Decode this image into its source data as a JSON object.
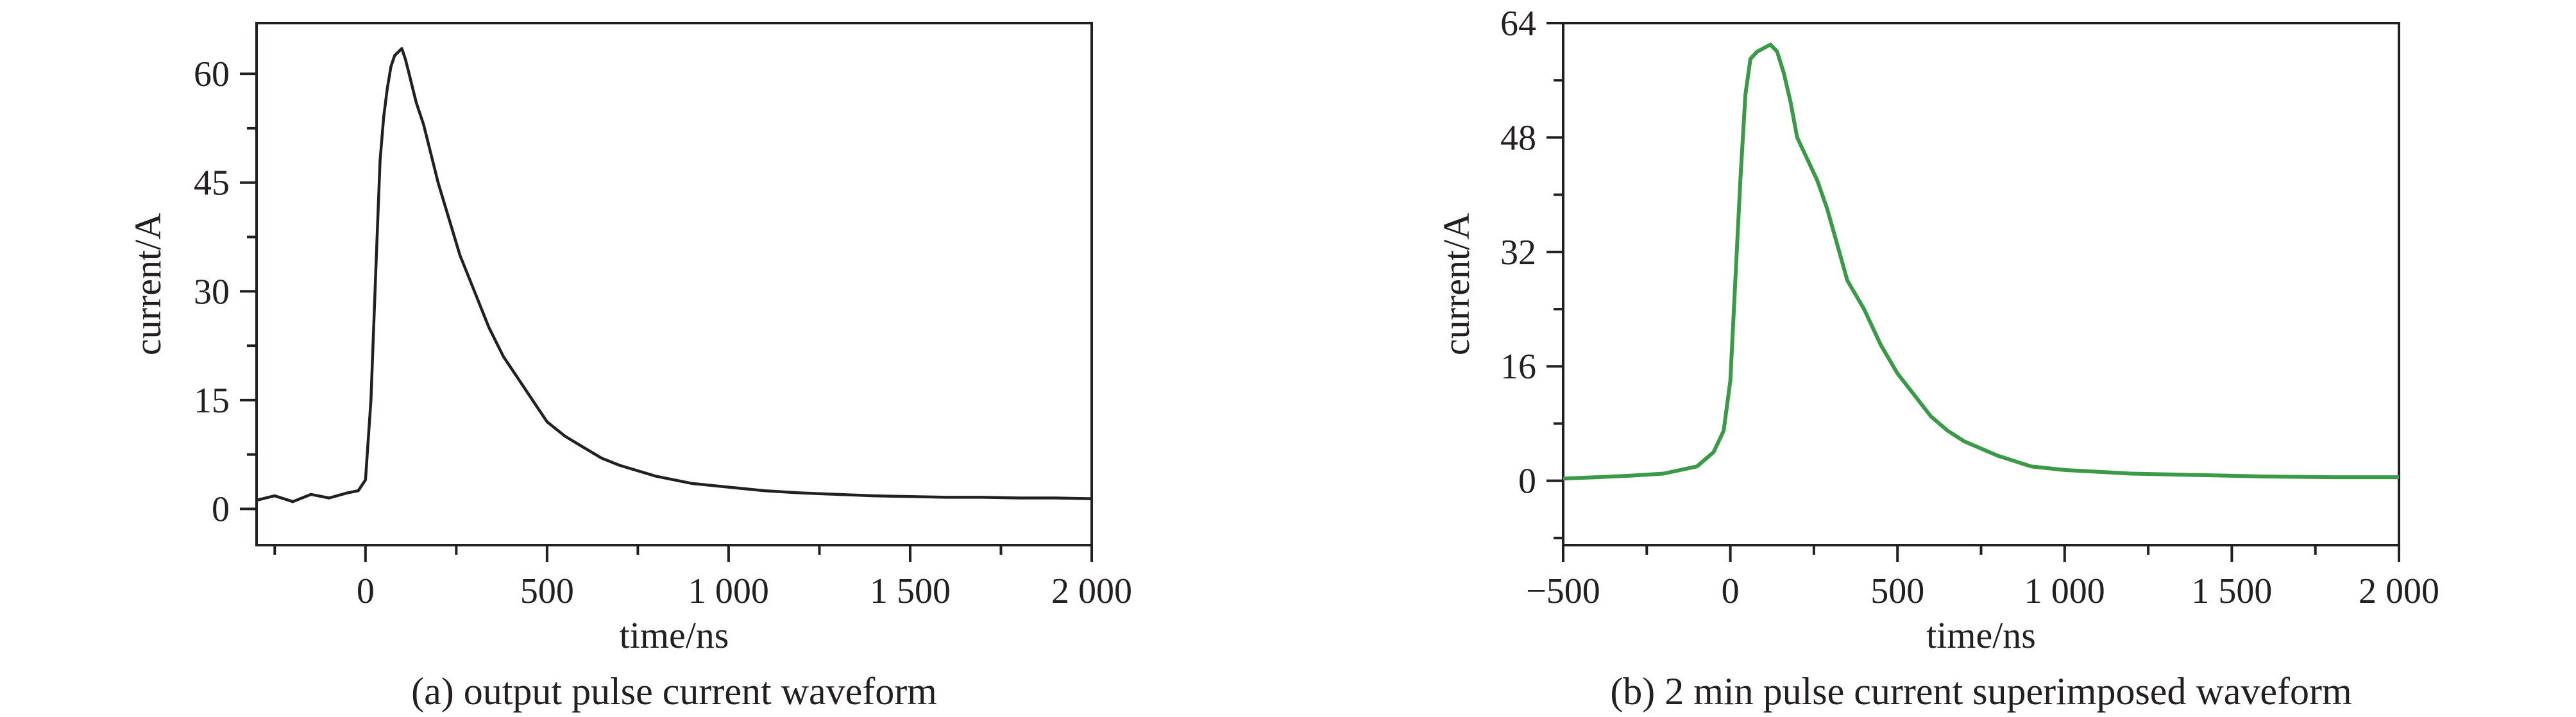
{
  "chart_data": [
    {
      "type": "line",
      "caption": "(a) output pulse current waveform",
      "xlabel": "time/ns",
      "ylabel": "current/A",
      "xlim": [
        -300,
        2000
      ],
      "ylim": [
        -5,
        67
      ],
      "xticks": [
        0,
        500,
        1000,
        1500,
        2000
      ],
      "xtick_labels": [
        "0",
        "500",
        "1 000",
        "1 500",
        "2 000"
      ],
      "yticks": [
        0,
        15,
        30,
        45,
        60
      ],
      "ytick_labels": [
        "0",
        "15",
        "30",
        "45",
        "60"
      ],
      "grid": false,
      "series": [
        {
          "color": "#231f20",
          "x": [
            -300,
            -250,
            -200,
            -150,
            -100,
            -50,
            -20,
            0,
            15,
            30,
            40,
            50,
            60,
            70,
            80,
            90,
            100,
            110,
            120,
            130,
            140,
            160,
            180,
            200,
            230,
            260,
            300,
            340,
            380,
            420,
            460,
            500,
            550,
            600,
            650,
            700,
            800,
            900,
            1000,
            1100,
            1200,
            1300,
            1400,
            1500,
            1600,
            1700,
            1800,
            1900,
            2000
          ],
          "y": [
            1.2,
            1.8,
            1.0,
            2.0,
            1.5,
            2.2,
            2.5,
            4,
            15,
            35,
            48,
            54,
            58,
            61,
            62.5,
            63,
            63.5,
            62,
            60,
            58,
            56,
            53,
            49,
            45,
            40,
            35,
            30,
            25,
            21,
            18,
            15,
            12,
            10,
            8.5,
            7,
            6,
            4.5,
            3.5,
            3,
            2.5,
            2.2,
            2.0,
            1.8,
            1.7,
            1.6,
            1.6,
            1.5,
            1.5,
            1.4
          ]
        }
      ]
    },
    {
      "type": "line",
      "caption": "(b) 2 min pulse current superimposed waveform",
      "xlabel": "time/ns",
      "ylabel": "current/A",
      "xlim": [
        -500,
        2000
      ],
      "ylim": [
        -9,
        64
      ],
      "xticks": [
        -500,
        0,
        500,
        1000,
        1500,
        2000
      ],
      "xtick_labels": [
        "−500",
        "0",
        "500",
        "1 000",
        "1 500",
        "2 000"
      ],
      "yticks": [
        0,
        16,
        32,
        48,
        64
      ],
      "ytick_labels": [
        "0",
        "16",
        "32",
        "48",
        "64"
      ],
      "grid": false,
      "series": [
        {
          "color": "#3a9a47",
          "x": [
            -500,
            -400,
            -300,
            -200,
            -100,
            -50,
            -20,
            0,
            15,
            30,
            45,
            60,
            80,
            100,
            120,
            140,
            160,
            180,
            200,
            230,
            260,
            290,
            320,
            350,
            400,
            450,
            500,
            550,
            600,
            650,
            700,
            800,
            900,
            1000,
            1200,
            1400,
            1600,
            1800,
            2000
          ],
          "y": [
            0.3,
            0.5,
            0.7,
            1.0,
            2.0,
            4.0,
            7.0,
            14,
            28,
            42,
            54,
            59,
            60,
            60.5,
            61,
            60,
            57,
            53,
            48,
            45,
            42,
            38,
            33,
            28,
            24,
            19,
            15,
            12,
            9,
            7,
            5.5,
            3.5,
            2.0,
            1.5,
            1.0,
            0.8,
            0.6,
            0.5,
            0.5
          ]
        }
      ]
    }
  ]
}
